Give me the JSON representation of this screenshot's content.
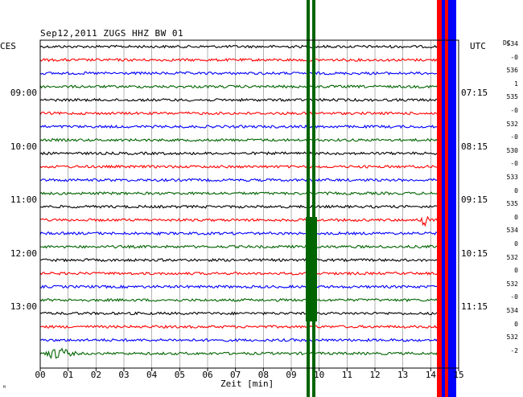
{
  "header": {
    "title": "Sep12,2011   ZUGS HHZ BW 01",
    "left_zone": "CES",
    "right_zone": "UTC",
    "dc_header": "DC"
  },
  "left_time_labels": [
    "09:00",
    "10:00",
    "11:00",
    "12:00",
    "13:00"
  ],
  "right_time_labels": [
    "07:15",
    "08:15",
    "09:15",
    "10:15",
    "11:15"
  ],
  "dc_values": [
    "534",
    "-0",
    "536",
    "1",
    "535",
    "-0",
    "532",
    "-0",
    "530",
    "-0",
    "533",
    "0",
    "535",
    "0",
    "534",
    "0",
    "532",
    "0",
    "532",
    "-0",
    "534",
    "0",
    "532",
    "-2"
  ],
  "x_axis": {
    "label": "Zeit [min]",
    "ticks": [
      "00",
      "01",
      "02",
      "03",
      "04",
      "05",
      "06",
      "07",
      "08",
      "09",
      "10",
      "11",
      "12",
      "13",
      "14",
      "15"
    ]
  },
  "bottom_mark": "ᴺ",
  "colors": {
    "black": "#000000",
    "red": "#ff0000",
    "blue": "#0000ff",
    "green": "#006400",
    "grid": "#808080"
  },
  "trace_colors": [
    "black",
    "red",
    "blue",
    "green"
  ]
}
